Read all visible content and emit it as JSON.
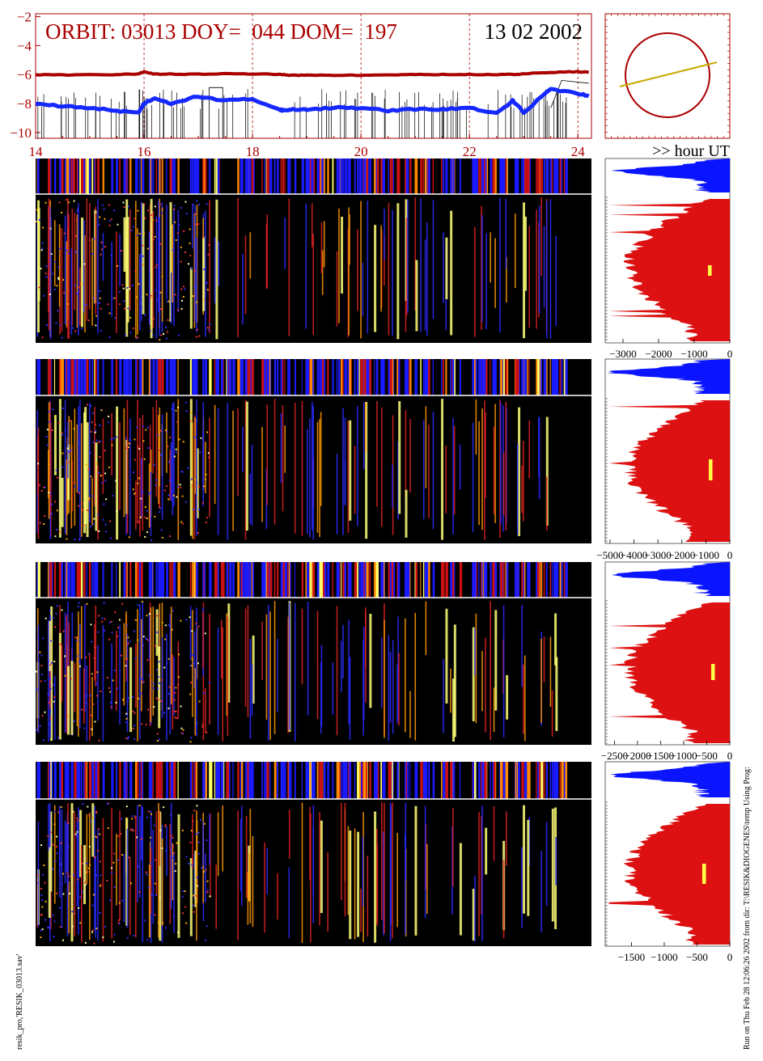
{
  "header": {
    "orbit_text": "ORBIT: 03013 DOY=  044 DOM=  197",
    "date_text": "13 02 2002",
    "hour_label": ">> hour UT"
  },
  "footer": {
    "left_text": "resik_pro,'RESIK_03013.sav'",
    "right_text": "Run on Thu Feb 28 12:06:26 2002  from dir: T:\\RESIK&DIOGENES\\temp Using Prog:"
  },
  "colors": {
    "red_curve": "#aa0000",
    "blue_curve": "#1428ff",
    "axis_red": "#aa0000",
    "histogram_red": "#dd1111",
    "histogram_blue": "#0a14ff",
    "orbit_line": "#c8a800",
    "marker": "#ffff44"
  },
  "chart_data": [
    {
      "type": "line",
      "x": [
        14,
        14.5,
        15,
        15.5,
        15.9,
        16,
        16.2,
        16.5,
        17,
        17.5,
        18,
        18.5,
        18.6,
        18.7,
        19,
        19.5,
        20,
        20.5,
        21,
        21.5,
        22,
        22.5,
        22.8,
        23,
        23.5,
        24,
        24.2
      ],
      "xlim": [
        14,
        24.25
      ],
      "ylim": [
        -10.4,
        -1.8
      ],
      "xticks": [
        14,
        16,
        18,
        20,
        22,
        24
      ],
      "yticks": [
        -2,
        -4,
        -6,
        -8,
        -10
      ],
      "series": [
        {
          "values": [
            -6.0,
            -6.02,
            -6.02,
            -6.0,
            -5.95,
            -5.8,
            -5.97,
            -5.97,
            -5.97,
            -5.95,
            -5.95,
            -6.0,
            -6.0,
            -6.05,
            -6.05,
            -6.05,
            -6.05,
            -6.02,
            -6.0,
            -6.0,
            -6.0,
            -6.0,
            -6.0,
            -5.95,
            -5.85,
            -5.8,
            -5.85
          ]
        },
        {
          "values": [
            -8.0,
            -8.2,
            -8.3,
            -8.5,
            -8.6,
            -8.0,
            -7.6,
            -8.0,
            -7.5,
            -7.8,
            -7.7,
            -8.4,
            -8.5,
            -8.4,
            -8.4,
            -8.3,
            -8.3,
            -8.5,
            -8.4,
            -8.4,
            -8.3,
            -8.7,
            -7.8,
            -8.6,
            -7.0,
            -7.3,
            -7.5
          ]
        }
      ]
    },
    {
      "type": "line",
      "series": [
        {
          "values": [
            -1,
            0.4
          ]
        }
      ]
    },
    {
      "type": "heatmap",
      "xlim": [
        14,
        24.25
      ],
      "rows": 4
    },
    {
      "type": "bar",
      "xlim": [
        -3500,
        0
      ],
      "xticks": [
        -3000,
        -2000,
        -1000,
        0
      ],
      "xtick_labels": [
        "−3000",
        "−2000",
        "−1000",
        "0"
      ]
    },
    {
      "type": "bar",
      "xlim": [
        -5200,
        0
      ],
      "xticks": [
        -5000,
        -4000,
        -3000,
        -2000,
        -1000,
        0
      ],
      "xtick_labels": [
        "−5000",
        "−4000",
        "−3000",
        "−2000",
        "−1000",
        "0"
      ]
    },
    {
      "type": "bar",
      "xlim": [
        -2700,
        0
      ],
      "xticks": [
        -2500,
        -2000,
        -1500,
        -1000,
        -500,
        0
      ],
      "xtick_labels": [
        "−2500",
        "−2000",
        "−1500",
        "−1000",
        "−500",
        "0"
      ]
    },
    {
      "type": "bar",
      "xlim": [
        -1900,
        0
      ],
      "xticks": [
        -1500,
        -1000,
        -500,
        0
      ],
      "xtick_labels": [
        "−1500",
        "−1000",
        "−500",
        "0"
      ]
    }
  ]
}
